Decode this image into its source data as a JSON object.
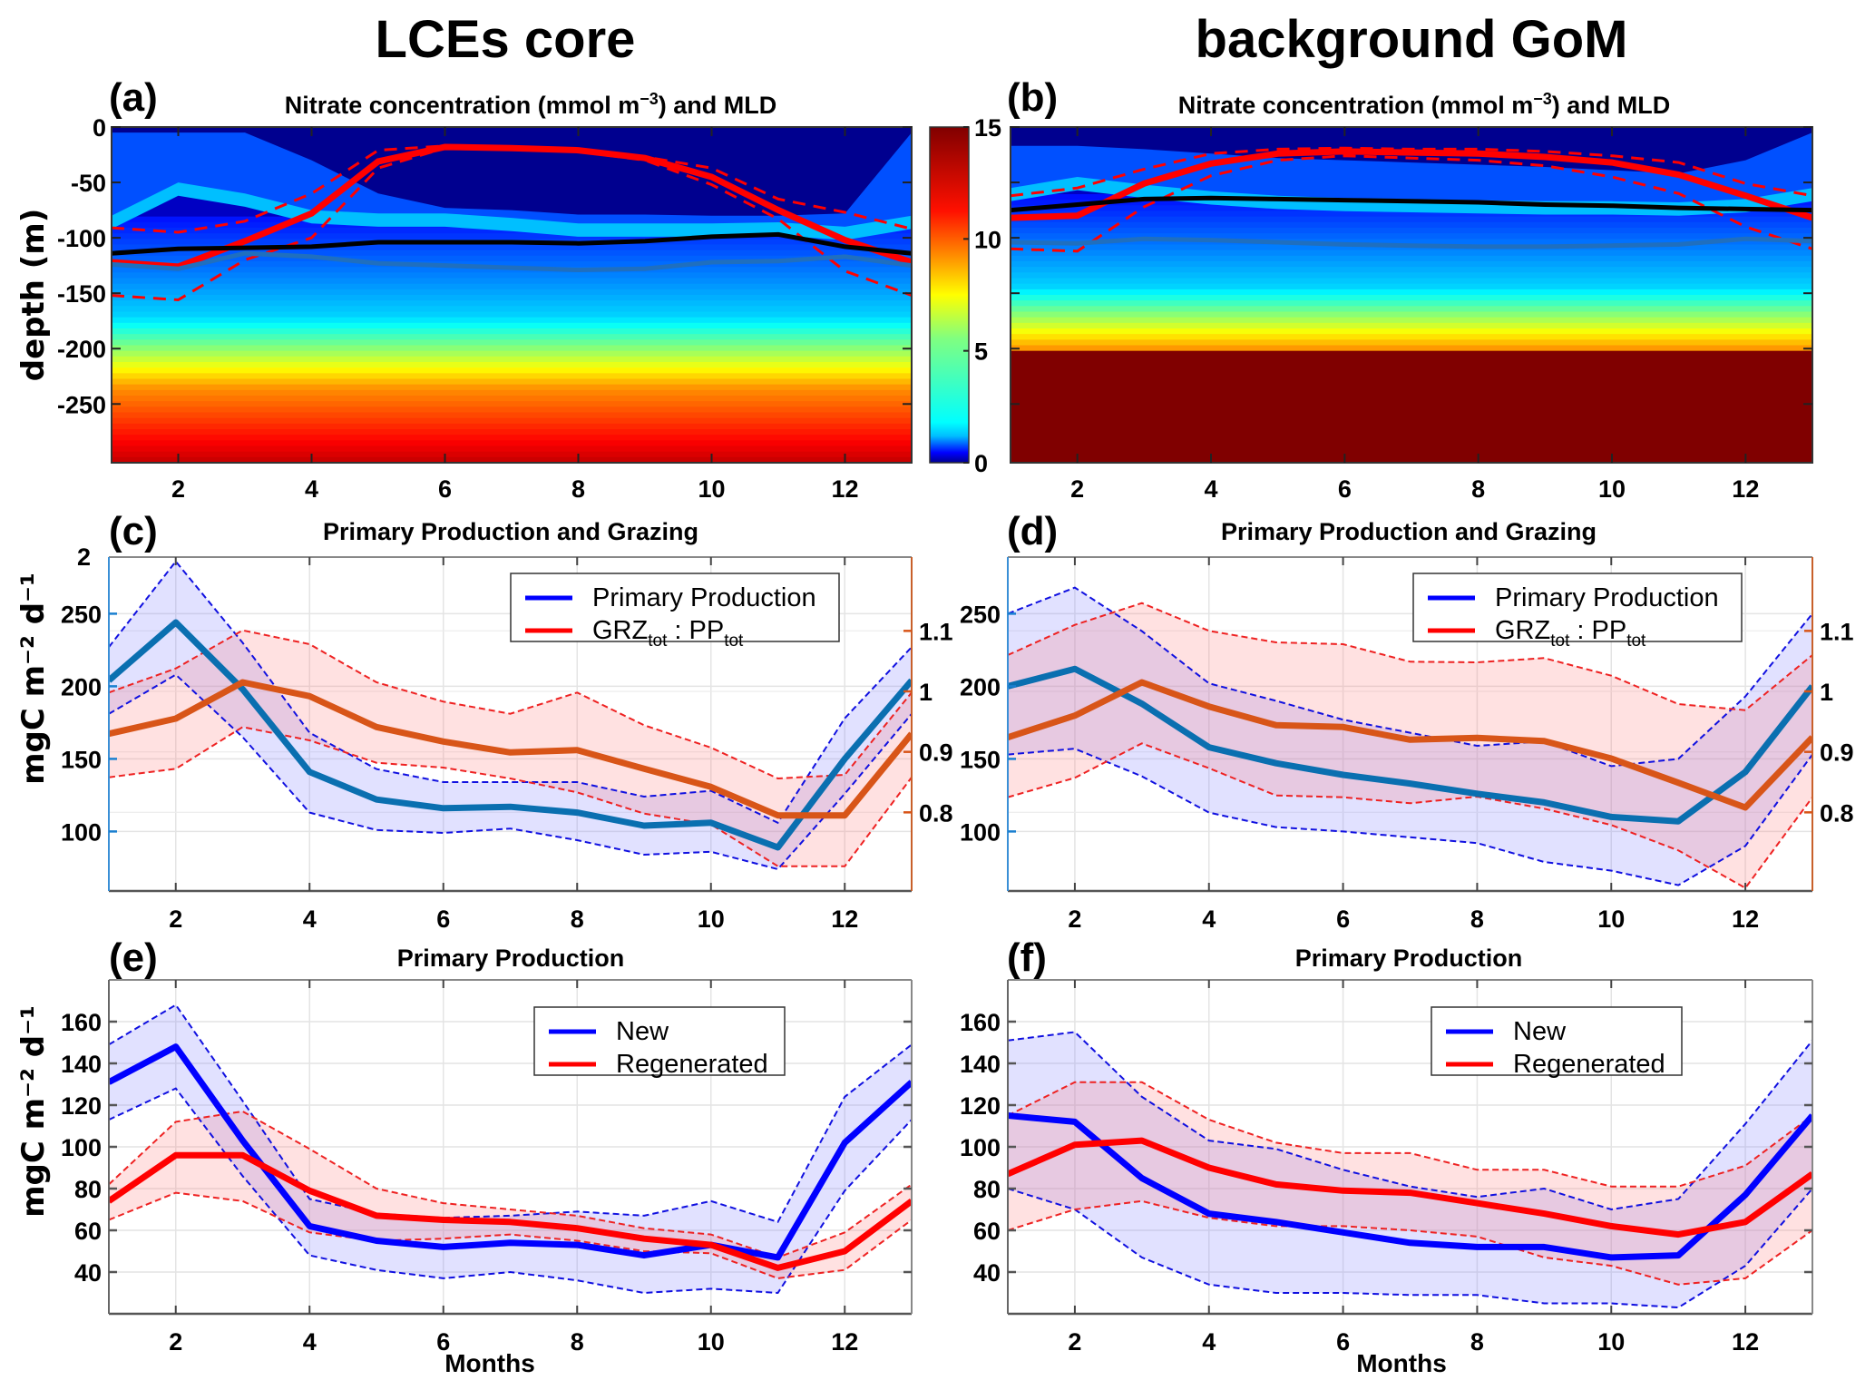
{
  "figure": {
    "column_titles": [
      "LCEs core",
      "background GoM"
    ]
  },
  "chart_data": [
    {
      "id": "a",
      "type": "heatmap",
      "panel_label": "(a)",
      "title_prefix": "Nitrate concentration (mmol m",
      "title_sup": "−3",
      "title_suffix": ") and MLD",
      "xlabel": "",
      "ylabel": "depth (m)",
      "xlim": [
        1,
        13
      ],
      "ylim": [
        -303,
        0
      ],
      "xticks": [
        2,
        4,
        6,
        8,
        10,
        12
      ],
      "yticks": [
        0,
        -50,
        -100,
        -150,
        -200,
        -250
      ],
      "ytick_labels": [
        "0",
        "-50",
        "-100",
        "-150",
        "-200",
        "-250"
      ],
      "x": [
        1,
        2,
        3,
        4,
        5,
        6,
        7,
        8,
        9,
        10,
        11,
        12,
        13
      ],
      "contour_bands_depth": {
        "dark_blue_base": [
          -5,
          -5,
          -5,
          -30,
          -60,
          -73,
          -75,
          -79,
          -79,
          -80,
          -80,
          -78,
          -5
        ],
        "blue_base": [
          -80,
          -50,
          -60,
          -75,
          -78,
          -78,
          -82,
          -87,
          -87,
          -87,
          -86,
          -90,
          -80
        ],
        "nitracline_5": [
          -165,
          -165,
          -168,
          -170,
          -172,
          -174,
          -176,
          -177,
          -176,
          -175,
          -172,
          -170,
          -165
        ],
        "nitracline_10": [
          -230,
          -228,
          -230,
          -235,
          -238,
          -240,
          -242,
          -243,
          -242,
          -240,
          -236,
          -232,
          -230
        ]
      },
      "series": [
        {
          "name": "MLD mean",
          "color": "#ff0000",
          "style": "solid-thick",
          "values": [
            -122,
            -126,
            -103,
            -78,
            -31,
            -18,
            -19,
            -21,
            -28,
            -45,
            -75,
            -102,
            -122
          ]
        },
        {
          "name": "MLD upper",
          "color": "#ff0000",
          "style": "dashed",
          "values": [
            -91,
            -95,
            -85,
            -60,
            -21,
            -17,
            -19,
            -20,
            -27,
            -37,
            -65,
            -77,
            -92
          ]
        },
        {
          "name": "MLD lower",
          "color": "#ff0000",
          "style": "dashed",
          "values": [
            -152,
            -156,
            -120,
            -100,
            -37,
            -19,
            -20,
            -22,
            -30,
            -52,
            -83,
            -130,
            -152
          ]
        },
        {
          "name": "black contour",
          "color": "#000000",
          "style": "solid",
          "values": [
            -114,
            -110,
            -109,
            -108,
            -104,
            -104,
            -104,
            -105,
            -103,
            -99,
            -97,
            -108,
            -114
          ]
        },
        {
          "name": "blue contour",
          "color": "#1f6fbf",
          "style": "solid",
          "values": [
            -124,
            -128,
            -114,
            -117,
            -123,
            -125,
            -127,
            -129,
            -128,
            -122,
            -121,
            -117,
            -125
          ]
        }
      ]
    },
    {
      "id": "colorbar",
      "type": "colorbar",
      "range": [
        0,
        15
      ],
      "ticks": [
        0,
        5,
        10,
        15
      ],
      "tick_labels": [
        "0",
        "5",
        "10",
        "15"
      ],
      "colormap": "jet"
    },
    {
      "id": "b",
      "type": "heatmap",
      "panel_label": "(b)",
      "title_prefix": "Nitrate concentration (mmol m",
      "title_sup": "−3",
      "title_suffix": ") and MLD",
      "xlim": [
        1,
        13
      ],
      "ylim": [
        -303,
        0
      ],
      "xticks": [
        2,
        4,
        6,
        8,
        10,
        12
      ],
      "x": [
        1,
        2,
        3,
        4,
        5,
        6,
        7,
        8,
        9,
        10,
        11,
        12,
        13
      ],
      "contour_bands_depth": {
        "dark_blue_base": [
          -17,
          -17,
          -20,
          -24,
          -28,
          -30,
          -32,
          -34,
          -36,
          -39,
          -42,
          -30,
          -5
        ],
        "blue_base": [
          -55,
          -45,
          -52,
          -58,
          -62,
          -64,
          -65,
          -66,
          -67,
          -67,
          -68,
          -65,
          -55
        ],
        "nitracline_5": [
          -140,
          -142,
          -143,
          -145,
          -146,
          -147,
          -148,
          -148,
          -147,
          -146,
          -145,
          -142,
          -140
        ],
        "deep_cutoff": [
          -200,
          -200,
          -200,
          -201,
          -201,
          -201,
          -201,
          -201,
          -201,
          -201,
          -201,
          -200,
          -200
        ]
      },
      "series": [
        {
          "name": "MLD mean",
          "color": "#ff0000",
          "style": "solid-thick",
          "values": [
            -82,
            -80,
            -51,
            -33,
            -24,
            -22,
            -23,
            -24,
            -27,
            -32,
            -43,
            -62,
            -82
          ]
        },
        {
          "name": "MLD upper",
          "color": "#ff0000",
          "style": "dashed",
          "values": [
            -62,
            -55,
            -38,
            -24,
            -20,
            -19,
            -20,
            -20,
            -22,
            -26,
            -32,
            -51,
            -62
          ]
        },
        {
          "name": "MLD lower",
          "color": "#ff0000",
          "style": "dashed",
          "values": [
            -110,
            -112,
            -72,
            -44,
            -30,
            -26,
            -28,
            -30,
            -35,
            -45,
            -60,
            -90,
            -110
          ]
        },
        {
          "name": "black contour",
          "color": "#000000",
          "style": "solid",
          "values": [
            -75,
            -70,
            -65,
            -64,
            -65,
            -66,
            -67,
            -68,
            -70,
            -71,
            -73,
            -74,
            -75
          ]
        },
        {
          "name": "blue contour",
          "color": "#1f6fbf",
          "style": "solid",
          "values": [
            -104,
            -105,
            -101,
            -102,
            -104,
            -106,
            -107,
            -108,
            -108,
            -107,
            -106,
            -101,
            -103
          ]
        }
      ]
    },
    {
      "id": "c",
      "type": "line",
      "panel_label": "(c)",
      "title": "Primary Production and Grazing",
      "ylabel": "mgC m⁻² d⁻¹",
      "xlim": [
        1,
        13
      ],
      "ylim_left": [
        59,
        289
      ],
      "ylim_right": [
        0.67,
        1.222
      ],
      "yticks_left": [
        100,
        150,
        200,
        250
      ],
      "yticks_right": [
        0.8,
        0.9,
        1.0,
        1.1
      ],
      "ytick_labels_right": [
        "0.8",
        "0.9",
        "1",
        "1.1"
      ],
      "top_left_label": "2",
      "xticks": [
        2,
        4,
        6,
        8,
        10,
        12
      ],
      "x": [
        1,
        2,
        3,
        4,
        5,
        6,
        7,
        8,
        9,
        10,
        11,
        12,
        13
      ],
      "legend": {
        "position": "top-right",
        "entries": [
          {
            "label": "Primary Production",
            "color": "#0000ff"
          },
          {
            "label": "GRZ",
            "sub1": "tot",
            "mid": " : PP",
            "sub2": "tot",
            "color": "#ff0000"
          }
        ]
      },
      "series": [
        {
          "name": "Primary Production",
          "axis": "left",
          "color": "#0a6fb0",
          "values": [
            204,
            244,
            198,
            141,
            122,
            116,
            117,
            113,
            104,
            106,
            89,
            150,
            204
          ],
          "upper": [
            227,
            286,
            230,
            168,
            143,
            134,
            134,
            134,
            124,
            128,
            106,
            178,
            227
          ],
          "lower": [
            181,
            208,
            165,
            113,
            101,
            99,
            102,
            94,
            84,
            86,
            74,
            126,
            181
          ]
        },
        {
          "name": "GRZtot : PPtot",
          "axis": "right",
          "color": "#d85518",
          "values": [
            0.93,
            0.955,
            1.015,
            0.992,
            0.941,
            0.917,
            0.899,
            0.903,
            0.872,
            0.842,
            0.795,
            0.795,
            0.93
          ],
          "upper": [
            0.998,
            1.038,
            1.101,
            1.078,
            1.015,
            0.983,
            0.963,
            0.998,
            0.944,
            0.907,
            0.856,
            0.862,
            0.998
          ],
          "lower": [
            0.858,
            0.872,
            0.941,
            0.919,
            0.882,
            0.874,
            0.856,
            0.833,
            0.798,
            0.78,
            0.711,
            0.711,
            0.858
          ]
        }
      ]
    },
    {
      "id": "d",
      "type": "line",
      "panel_label": "(d)",
      "title": "Primary Production and Grazing",
      "xlim": [
        1,
        13
      ],
      "ylim_left": [
        59,
        289
      ],
      "ylim_right": [
        0.67,
        1.222
      ],
      "yticks_left": [
        100,
        150,
        200,
        250
      ],
      "yticks_right": [
        0.8,
        0.9,
        1.0,
        1.1
      ],
      "ytick_labels_right": [
        "0.8",
        "0.9",
        "1",
        "1.1"
      ],
      "xticks": [
        2,
        4,
        6,
        8,
        10,
        12
      ],
      "x": [
        1,
        2,
        3,
        4,
        5,
        6,
        7,
        8,
        9,
        10,
        11,
        12,
        13
      ],
      "legend": {
        "position": "top-right",
        "entries": [
          {
            "label": "Primary Production",
            "color": "#0000ff"
          },
          {
            "label": "GRZ",
            "sub1": "tot",
            "mid": " : PP",
            "sub2": "tot",
            "color": "#ff0000"
          }
        ]
      },
      "series": [
        {
          "name": "Primary Production",
          "axis": "left",
          "color": "#0a6fb0",
          "values": [
            200,
            212,
            188,
            158,
            147,
            139,
            133,
            126,
            120,
            110,
            107,
            141,
            200
          ],
          "upper": [
            250,
            268,
            238,
            202,
            190,
            177,
            168,
            159,
            162,
            145,
            150,
            193,
            250
          ],
          "lower": [
            153,
            157,
            138,
            113,
            103,
            100,
            96,
            92,
            79,
            73,
            63,
            90,
            153
          ]
        },
        {
          "name": "GRZtot : PPtot",
          "axis": "right",
          "color": "#d85518",
          "values": [
            0.924,
            0.96,
            1.015,
            0.975,
            0.944,
            0.941,
            0.92,
            0.923,
            0.918,
            0.889,
            0.849,
            0.808,
            0.924
          ],
          "upper": [
            1.06,
            1.11,
            1.146,
            1.1,
            1.081,
            1.078,
            1.049,
            1.048,
            1.055,
            1.026,
            0.979,
            0.969,
            1.06
          ],
          "lower": [
            0.825,
            0.857,
            0.914,
            0.873,
            0.828,
            0.825,
            0.815,
            0.826,
            0.806,
            0.779,
            0.737,
            0.675,
            0.825
          ]
        }
      ]
    },
    {
      "id": "e",
      "type": "line",
      "panel_label": "(e)",
      "title": "Primary Production",
      "xlabel": "Months",
      "ylabel": "mgC m⁻² d⁻¹",
      "xlim": [
        1,
        13
      ],
      "ylim": [
        20,
        180
      ],
      "yticks": [
        40,
        60,
        80,
        100,
        120,
        140,
        160
      ],
      "xticks": [
        2,
        4,
        6,
        8,
        10,
        12
      ],
      "x": [
        1,
        2,
        3,
        4,
        5,
        6,
        7,
        8,
        9,
        10,
        11,
        12,
        13
      ],
      "legend": {
        "position": "top-right",
        "entries": [
          {
            "label": "New",
            "color": "#0000ff"
          },
          {
            "label": "Regenerated",
            "color": "#ff0000"
          }
        ]
      },
      "series": [
        {
          "name": "New",
          "color": "#0000ff",
          "values": [
            131,
            148,
            103,
            62,
            55,
            52,
            54,
            53,
            48,
            53,
            47,
            102,
            131
          ],
          "upper": [
            149,
            168,
            122,
            75,
            68,
            66,
            67,
            69,
            67,
            74,
            64,
            124,
            149
          ],
          "lower": [
            113,
            128,
            86,
            48,
            41,
            37,
            40,
            36,
            30,
            32,
            30,
            79,
            113
          ]
        },
        {
          "name": "Regenerated",
          "color": "#ff0000",
          "values": [
            74,
            96,
            96,
            79,
            67,
            65,
            64,
            61,
            56,
            53,
            42,
            50,
            74
          ],
          "upper": [
            82,
            112,
            117,
            99,
            80,
            73,
            70,
            67,
            61,
            58,
            47,
            59,
            82
          ],
          "lower": [
            65,
            78,
            74,
            59,
            55,
            56,
            58,
            55,
            50,
            49,
            37,
            41,
            65
          ]
        }
      ]
    },
    {
      "id": "f",
      "type": "line",
      "panel_label": "(f)",
      "title": "Primary Production",
      "xlabel": "Months",
      "xlim": [
        1,
        13
      ],
      "ylim": [
        20,
        180
      ],
      "yticks": [
        40,
        60,
        80,
        100,
        120,
        140,
        160
      ],
      "xticks": [
        2,
        4,
        6,
        8,
        10,
        12
      ],
      "x": [
        1,
        2,
        3,
        4,
        5,
        6,
        7,
        8,
        9,
        10,
        11,
        12,
        13
      ],
      "legend": {
        "position": "top-right",
        "entries": [
          {
            "label": "New",
            "color": "#0000ff"
          },
          {
            "label": "Regenerated",
            "color": "#ff0000"
          }
        ]
      },
      "series": [
        {
          "name": "New",
          "color": "#0000ff",
          "values": [
            115,
            112,
            85,
            68,
            64,
            59,
            54,
            52,
            52,
            47,
            48,
            77,
            115
          ],
          "upper": [
            151,
            155,
            124,
            103,
            99,
            89,
            81,
            76,
            80,
            70,
            75,
            111,
            151
          ],
          "lower": [
            80,
            70,
            47,
            34,
            30,
            30,
            29,
            29,
            25,
            25,
            23,
            43,
            80
          ]
        },
        {
          "name": "Regenerated",
          "color": "#ff0000",
          "values": [
            87,
            101,
            103,
            90,
            82,
            79,
            78,
            73,
            68,
            62,
            58,
            64,
            87
          ],
          "upper": [
            115,
            131,
            131,
            113,
            102,
            97,
            97,
            89,
            89,
            81,
            81,
            91,
            115
          ],
          "lower": [
            60,
            70,
            74,
            66,
            62,
            62,
            60,
            57,
            47,
            43,
            34,
            37,
            60
          ]
        }
      ]
    }
  ]
}
